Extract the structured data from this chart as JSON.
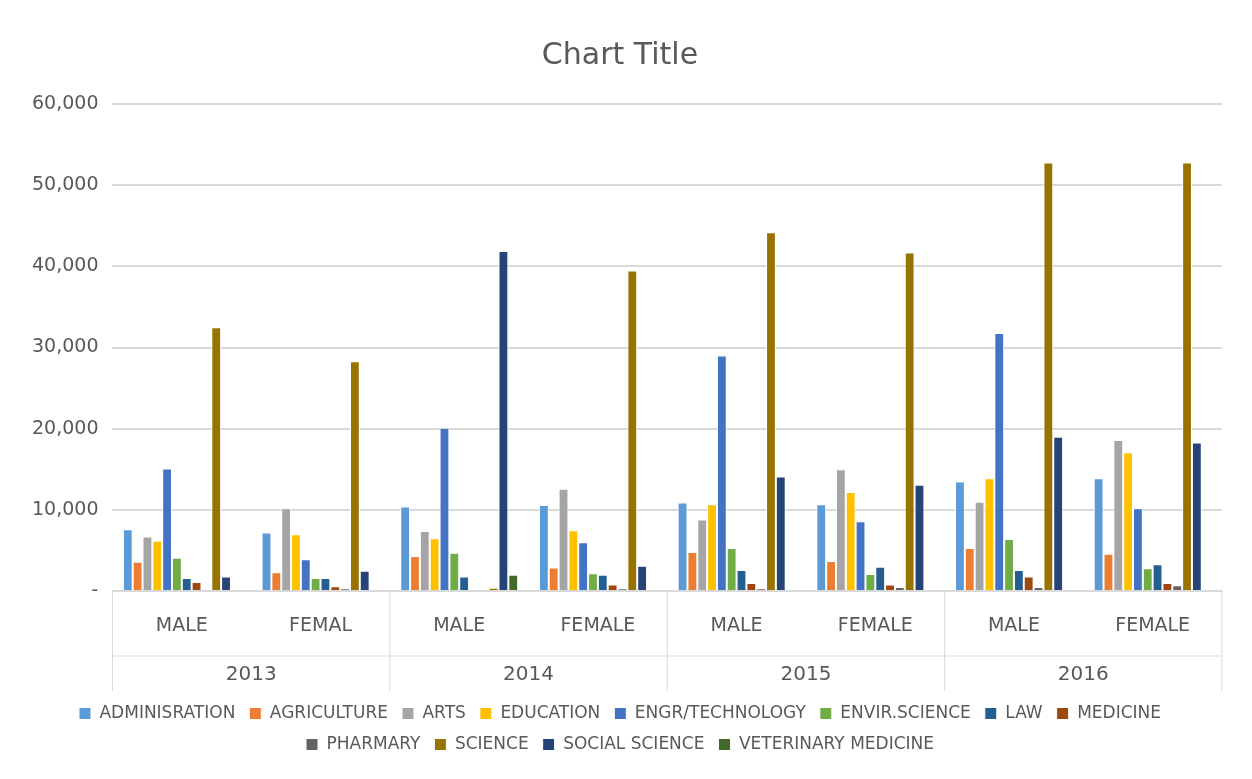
{
  "chart_data": {
    "type": "bar",
    "title": "Chart Title",
    "categories": [
      "MALE",
      "FEMAL",
      "MALE",
      "FEMALE",
      "MALE",
      "FEMALE",
      "MALE",
      "FEMALE"
    ],
    "annotations": [
      "2013",
      "2014",
      "2015",
      "2016"
    ],
    "series": [
      {
        "name": "ADMINISRATION",
        "color": "#5b9bd5",
        "values": [
          7600,
          7200,
          10400,
          10600,
          10900,
          10700,
          13500,
          13900
        ]
      },
      {
        "name": "AGRICULTURE",
        "color": "#ed7d31",
        "values": [
          3600,
          2300,
          4300,
          2900,
          4800,
          3700,
          5300,
          4600
        ]
      },
      {
        "name": "ARTS",
        "color": "#a5a5a5",
        "values": [
          6700,
          10200,
          7400,
          12600,
          8800,
          15000,
          11000,
          18600
        ]
      },
      {
        "name": "EDUCATION",
        "color": "#ffc000",
        "values": [
          6200,
          7000,
          6500,
          7500,
          10700,
          12200,
          13900,
          17100
        ]
      },
      {
        "name": "ENGR/TECHNOLOGY",
        "color": "#4472c4",
        "values": [
          15100,
          3900,
          20100,
          6000,
          29000,
          8600,
          31800,
          10200
        ]
      },
      {
        "name": "ENVIR.SCIENCE",
        "color": "#70ad47",
        "values": [
          4100,
          1600,
          4700,
          2200,
          5300,
          2100,
          6400,
          2800
        ]
      },
      {
        "name": "LAW",
        "color": "#255e91",
        "values": [
          1600,
          1600,
          1800,
          2000,
          2600,
          3000,
          2600,
          3300
        ]
      },
      {
        "name": "MEDICINE",
        "color": "#9e480e",
        "values": [
          1100,
          600,
          0,
          800,
          1000,
          800,
          1800,
          1000
        ]
      },
      {
        "name": "PHARMARY",
        "color": "#636363",
        "values": [
          0,
          300,
          0,
          300,
          300,
          500,
          500,
          700
        ]
      },
      {
        "name": "SCIENCE",
        "color": "#997300",
        "values": [
          32500,
          28300,
          400,
          39500,
          44200,
          41700,
          52800,
          52800
        ]
      },
      {
        "name": "SOCIAL SCIENCE",
        "color": "#264478",
        "values": [
          1800,
          2500,
          41900,
          3100,
          14100,
          13100,
          19000,
          18300
        ]
      },
      {
        "name": "VETERINARY MEDICINE",
        "color": "#43682b",
        "values": [
          0,
          0,
          2000,
          0,
          0,
          0,
          0,
          0
        ]
      }
    ],
    "ylim": [
      0,
      60000
    ],
    "yticks": [
      {
        "value": 0,
        "label": "-"
      },
      {
        "value": 10000,
        "label": "10,000"
      },
      {
        "value": 20000,
        "label": "20,000"
      },
      {
        "value": 30000,
        "label": "30,000"
      },
      {
        "value": 40000,
        "label": "40,000"
      },
      {
        "value": 50000,
        "label": "50,000"
      },
      {
        "value": 60000,
        "label": "60,000"
      }
    ],
    "grid": "y",
    "legend": "bottom"
  }
}
